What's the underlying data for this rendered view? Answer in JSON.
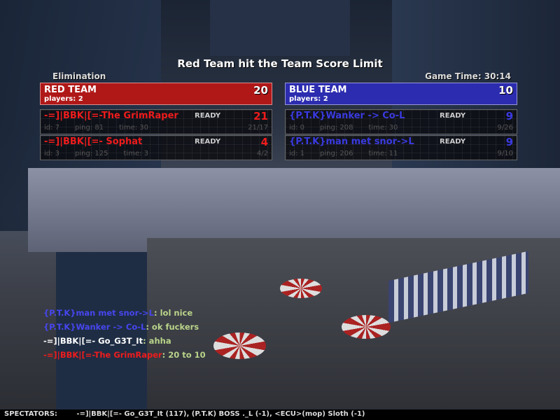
{
  "announcement": "Red Team hit the Team Score Limit",
  "game_mode": "Elimination",
  "game_time": "Game Time: 30:14",
  "teams": [
    {
      "name": "RED TEAM",
      "players_label": "players: 2",
      "score": "20",
      "color": "#b01818",
      "players": [
        {
          "name": "-=]|BBK|[=-The GrimRaper",
          "status": "READY",
          "score": "21",
          "id": "id: 7",
          "ping": "ping: 81",
          "time": "time: 30",
          "kd": "21/17"
        },
        {
          "name": "-=]|BBK|[=- Sophat",
          "status": "READY",
          "score": "4",
          "id": "id: 3",
          "ping": "ping: 125",
          "time": "time: 3",
          "kd": "4/2"
        }
      ]
    },
    {
      "name": "BLUE TEAM",
      "players_label": "players: 2",
      "score": "10",
      "color": "#2c2cb0",
      "players": [
        {
          "name": "{P.T.K}Wanker -> Co-L",
          "status": "READY",
          "score": "9",
          "id": "id: 0",
          "ping": "ping: 208",
          "time": "time: 30",
          "kd": "9/26"
        },
        {
          "name": "{P.T.K}man met snor->L",
          "status": "READY",
          "score": "9",
          "id": "id: 1",
          "ping": "ping: 206",
          "time": "time: 11",
          "kd": "9/10"
        }
      ]
    }
  ],
  "chat": [
    {
      "sender": "{P.T.K}man met snor->L",
      "team": "blue",
      "message": ": lol nice"
    },
    {
      "sender": "{P.T.K}Wanker -> Co-L",
      "team": "blue",
      "message": ": ok fuckers"
    },
    {
      "sender": "-=]|BBK|[=- Go_G3T_It",
      "team": "spectator",
      "message": ": ahha"
    },
    {
      "sender": "-=]|BBK|[=-The GrimRaper",
      "team": "red",
      "message": ": 20 to 10"
    }
  ],
  "spectators": {
    "label": "SPECTATORS:",
    "list": "-=]|BBK|[=- Go_G3T_It (117), (P.T.K) BOSS ._L (-1), <ECU>(mop) Sloth (-1)"
  }
}
